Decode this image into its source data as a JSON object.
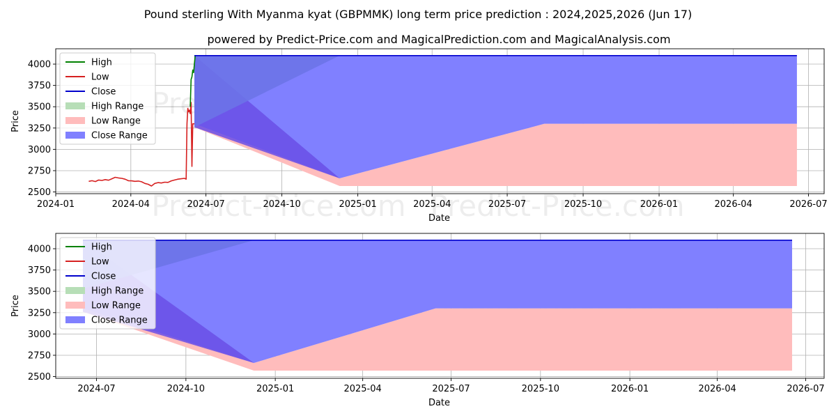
{
  "title": "Pound sterling With Myanma kyat (GBPMMK) long term price prediction : 2024,2025,2026 (Jun 17)",
  "subtitle": "powered by Predict-Price.com and MagicalPrediction.com and MagicalAnalysis.com",
  "watermark": "Predict-Price.com",
  "colors": {
    "high": "#008000",
    "low": "#d62020",
    "close": "#0000cc",
    "high_range": "#b7deb7",
    "low_range": "#ffbcbc",
    "close_range": "#8080ff",
    "grid": "#b0b0b0"
  },
  "legend": [
    "High",
    "Low",
    "Close",
    "High Range",
    "Low Range",
    "Close Range"
  ],
  "chart_data": [
    {
      "type": "line",
      "xlabel": "Date",
      "ylabel": "Price",
      "xlim": [
        "2024-01-01",
        "2026-07-20"
      ],
      "ylim": [
        2480,
        4180
      ],
      "xticks": [
        "2024-01",
        "2024-04",
        "2024-07",
        "2024-10",
        "2025-01",
        "2025-04",
        "2025-07",
        "2025-10",
        "2026-01",
        "2026-04",
        "2026-07"
      ],
      "yticks": [
        2500,
        2750,
        3000,
        3250,
        3500,
        3750,
        4000
      ],
      "series": [
        {
          "name": "Low",
          "points": [
            [
              "2024-02-10",
              2625
            ],
            [
              "2024-02-14",
              2632
            ],
            [
              "2024-02-18",
              2622
            ],
            [
              "2024-02-22",
              2640
            ],
            [
              "2024-02-26",
              2635
            ],
            [
              "2024-03-01",
              2645
            ],
            [
              "2024-03-05",
              2638
            ],
            [
              "2024-03-09",
              2655
            ],
            [
              "2024-03-13",
              2672
            ],
            [
              "2024-03-17",
              2665
            ],
            [
              "2024-03-21",
              2660
            ],
            [
              "2024-03-25",
              2650
            ],
            [
              "2024-03-29",
              2632
            ],
            [
              "2024-04-02",
              2630
            ],
            [
              "2024-04-06",
              2625
            ],
            [
              "2024-04-10",
              2628
            ],
            [
              "2024-04-14",
              2620
            ],
            [
              "2024-04-18",
              2600
            ],
            [
              "2024-04-22",
              2590
            ],
            [
              "2024-04-26",
              2570
            ],
            [
              "2024-04-30",
              2600
            ],
            [
              "2024-05-04",
              2610
            ],
            [
              "2024-05-08",
              2605
            ],
            [
              "2024-05-12",
              2615
            ],
            [
              "2024-05-16",
              2612
            ],
            [
              "2024-05-20",
              2630
            ],
            [
              "2024-05-24",
              2640
            ],
            [
              "2024-05-28",
              2650
            ],
            [
              "2024-06-01",
              2655
            ],
            [
              "2024-06-05",
              2660
            ],
            [
              "2024-06-07",
              2650
            ],
            [
              "2024-06-08",
              3300
            ],
            [
              "2024-06-09",
              3480
            ],
            [
              "2024-06-10",
              3440
            ],
            [
              "2024-06-11",
              3460
            ],
            [
              "2024-06-12",
              3420
            ],
            [
              "2024-06-13",
              3550
            ],
            [
              "2024-06-14",
              2800
            ],
            [
              "2024-06-15",
              3300
            ],
            [
              "2024-06-17",
              3300
            ]
          ]
        },
        {
          "name": "High",
          "points": [
            [
              "2024-06-12",
              3500
            ],
            [
              "2024-06-13",
              3820
            ],
            [
              "2024-06-14",
              3850
            ],
            [
              "2024-06-15",
              3930
            ],
            [
              "2024-06-16",
              3900
            ],
            [
              "2024-06-17",
              4000
            ],
            [
              "2024-06-18",
              4100
            ]
          ]
        },
        {
          "name": "Close",
          "points": [
            [
              "2024-06-17",
              4100
            ],
            [
              "2026-06-17",
              4100
            ]
          ]
        }
      ],
      "ranges": [
        {
          "name": "Low Range",
          "upper": [
            [
              "2024-06-17",
              3300
            ],
            [
              "2024-12-10",
              2660
            ],
            [
              "2025-08-15",
              3300
            ],
            [
              "2026-06-17",
              3300
            ]
          ],
          "lower": [
            [
              "2024-06-17",
              3260
            ],
            [
              "2024-12-10",
              2570
            ],
            [
              "2026-06-17",
              2570
            ]
          ]
        },
        {
          "name": "Close Range",
          "upper": [
            [
              "2024-06-17",
              4100
            ],
            [
              "2026-06-17",
              4100
            ]
          ],
          "lower": [
            [
              "2024-06-17",
              3300
            ],
            [
              "2024-12-10",
              2660
            ],
            [
              "2025-08-15",
              3300
            ],
            [
              "2026-06-17",
              3300
            ]
          ]
        },
        {
          "name": "Close Range Overlap",
          "upper": [
            [
              "2024-06-17",
              4100
            ],
            [
              "2024-12-10",
              2660
            ]
          ],
          "lower": [
            [
              "2024-06-17",
              3260
            ],
            [
              "2024-12-10",
              2660
            ]
          ]
        },
        {
          "name": "Close Range Upper Triangle",
          "upper": [
            [
              "2024-06-17",
              4100
            ],
            [
              "2024-12-10",
              4100
            ]
          ],
          "lower": [
            [
              "2024-06-17",
              3260
            ],
            [
              "2024-12-10",
              4100
            ]
          ]
        }
      ]
    },
    {
      "type": "line",
      "xlabel": "Date",
      "ylabel": "Price",
      "xlim": [
        "2024-05-20",
        "2026-07-20"
      ],
      "ylim": [
        2480,
        4180
      ],
      "xticks": [
        "2024-07",
        "2024-10",
        "2025-01",
        "2025-04",
        "2025-07",
        "2025-10",
        "2026-01",
        "2026-04",
        "2026-07"
      ],
      "yticks": [
        2500,
        2750,
        3000,
        3250,
        3500,
        3750,
        4000
      ],
      "series": [
        {
          "name": "Close",
          "points": [
            [
              "2024-06-17",
              4100
            ],
            [
              "2026-06-17",
              4100
            ]
          ]
        }
      ],
      "ranges": [
        {
          "name": "Low Range",
          "upper": [
            [
              "2024-06-17",
              3300
            ],
            [
              "2024-12-10",
              2660
            ],
            [
              "2025-06-15",
              3300
            ],
            [
              "2026-06-17",
              3300
            ]
          ],
          "lower": [
            [
              "2024-06-17",
              3260
            ],
            [
              "2024-12-10",
              2570
            ],
            [
              "2026-06-17",
              2570
            ]
          ]
        },
        {
          "name": "Close Range",
          "upper": [
            [
              "2024-06-17",
              4100
            ],
            [
              "2026-06-17",
              4100
            ]
          ],
          "lower": [
            [
              "2024-06-17",
              3300
            ],
            [
              "2024-12-10",
              2660
            ],
            [
              "2025-06-15",
              3300
            ],
            [
              "2026-06-17",
              3300
            ]
          ]
        },
        {
          "name": "Close Range Overlap",
          "upper": [
            [
              "2024-06-17",
              4100
            ],
            [
              "2024-12-10",
              2660
            ]
          ],
          "lower": [
            [
              "2024-06-17",
              3260
            ],
            [
              "2024-12-10",
              2660
            ]
          ]
        },
        {
          "name": "Close Range Upper Triangle",
          "upper": [
            [
              "2024-06-17",
              4100
            ],
            [
              "2024-12-10",
              4100
            ]
          ],
          "lower": [
            [
              "2024-06-17",
              3530
            ],
            [
              "2024-12-10",
              4100
            ]
          ]
        }
      ]
    }
  ]
}
